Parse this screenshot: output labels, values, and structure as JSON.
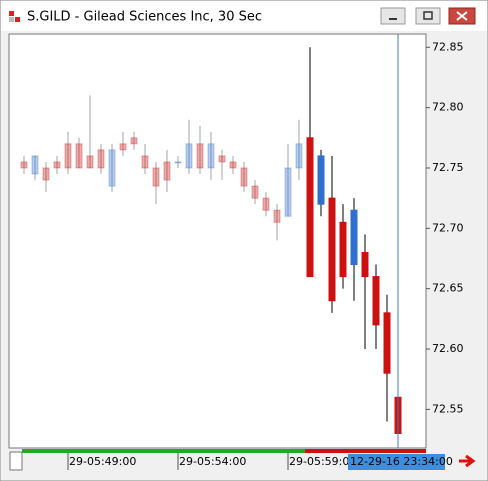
{
  "window": {
    "title": "S.GILD - Gilead Sciences Inc, 30 Sec"
  },
  "chart_data": {
    "type": "candlestick",
    "categories": [
      null,
      null,
      null,
      null,
      "29-05:49:00",
      null,
      null,
      null,
      null,
      null,
      null,
      null,
      null,
      null,
      "29-05:54:00",
      null,
      null,
      null,
      null,
      null,
      null,
      null,
      null,
      null,
      "29-05:59:00",
      null,
      null,
      null,
      null,
      null,
      null,
      null,
      null,
      null,
      null
    ],
    "open": [
      72.755,
      72.745,
      72.75,
      72.755,
      72.77,
      72.77,
      72.76,
      72.765,
      72.735,
      72.77,
      72.775,
      72.76,
      72.75,
      72.755,
      72.755,
      72.75,
      72.77,
      72.75,
      72.76,
      72.755,
      72.75,
      72.735,
      72.725,
      72.715,
      72.71,
      72.75,
      72.775,
      72.72,
      72.725,
      72.705,
      72.67,
      72.68,
      72.66,
      72.63,
      72.56
    ],
    "high": [
      72.76,
      72.76,
      72.755,
      72.76,
      72.78,
      72.775,
      72.81,
      72.77,
      72.77,
      72.78,
      72.78,
      72.77,
      72.755,
      72.765,
      72.76,
      72.79,
      72.785,
      72.78,
      72.765,
      72.76,
      72.755,
      72.74,
      72.73,
      72.72,
      72.77,
      72.79,
      72.85,
      72.765,
      72.76,
      72.72,
      72.725,
      72.695,
      72.67,
      72.645,
      72.59
    ],
    "low": [
      72.745,
      72.74,
      72.73,
      72.745,
      72.745,
      72.75,
      72.75,
      72.745,
      72.73,
      72.76,
      72.765,
      72.745,
      72.72,
      72.73,
      72.75,
      72.745,
      72.745,
      72.74,
      72.74,
      72.745,
      72.73,
      72.72,
      72.71,
      72.69,
      72.71,
      72.74,
      72.66,
      72.71,
      72.63,
      72.65,
      72.64,
      72.6,
      72.6,
      72.54,
      72.525
    ],
    "close": [
      72.75,
      72.76,
      72.74,
      72.75,
      72.75,
      72.75,
      72.75,
      72.75,
      72.765,
      72.765,
      72.77,
      72.75,
      72.735,
      72.74,
      72.755,
      72.77,
      72.75,
      72.77,
      72.755,
      72.75,
      72.735,
      72.725,
      72.715,
      72.705,
      72.75,
      72.77,
      72.66,
      72.76,
      72.64,
      72.66,
      72.715,
      72.66,
      72.62,
      72.58,
      72.53
    ],
    "up_color": "#2f6fd0",
    "down_color": "#cc1111",
    "ylim": [
      72.518,
      72.861
    ],
    "yticks": [
      72.55,
      {
        "value": 72.6,
        "label": "72.60"
      },
      72.65,
      {
        "value": 72.7,
        "label": "72.70"
      },
      72.75,
      {
        "value": 72.8,
        "label": "72.80"
      },
      72.85
    ],
    "current_label": "12-29-16 23:34:00"
  }
}
